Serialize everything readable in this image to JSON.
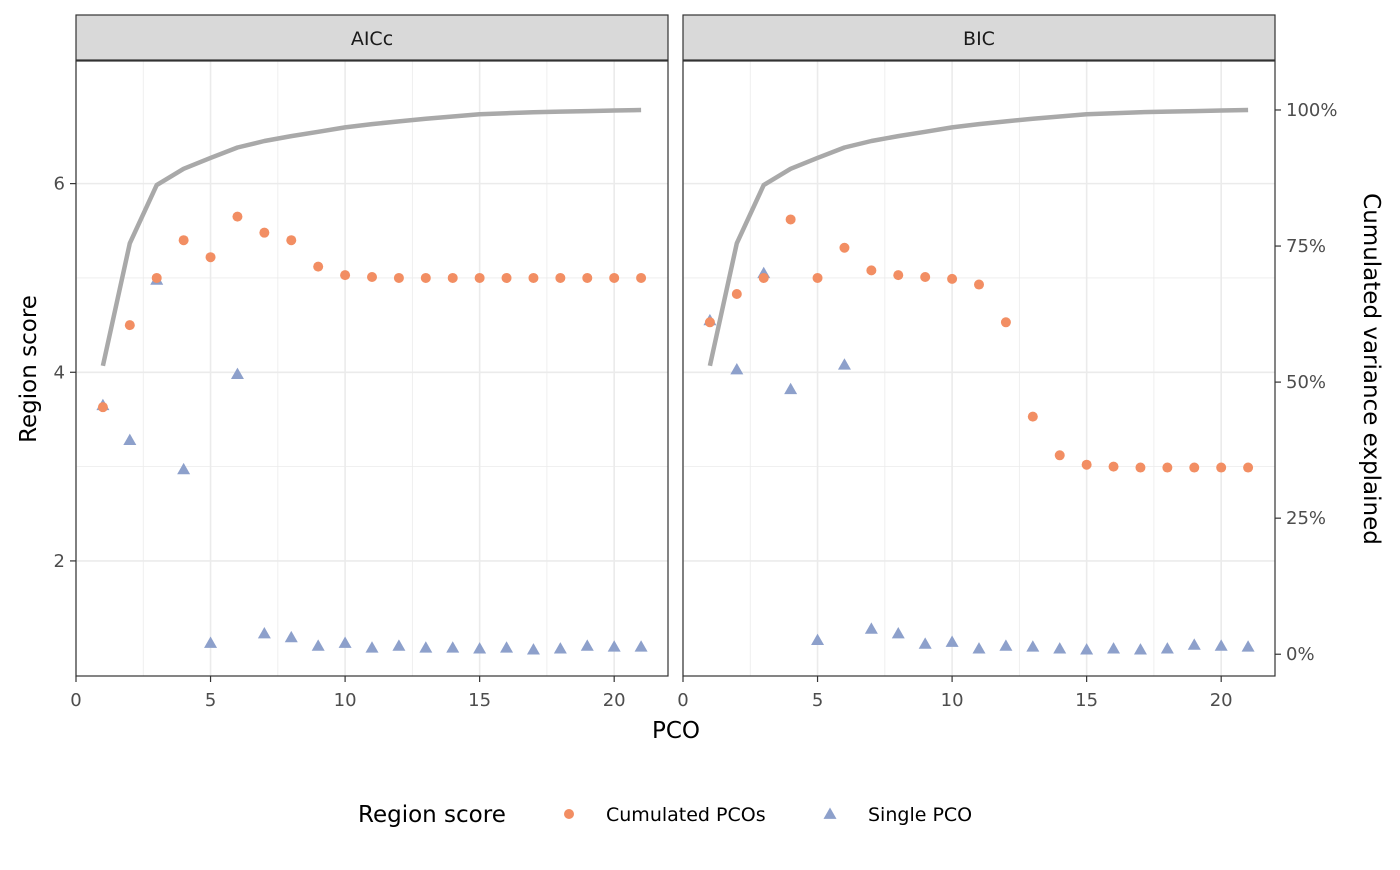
{
  "chart_data": {
    "type": "scatter",
    "facets": [
      {
        "label": "AICc",
        "cumulated_pcos": [
          [
            1,
            3.63
          ],
          [
            2,
            4.5
          ],
          [
            3,
            5.0
          ],
          [
            4,
            5.4
          ],
          [
            5,
            5.22
          ],
          [
            6,
            5.65
          ],
          [
            7,
            5.48
          ],
          [
            8,
            5.4
          ],
          [
            9,
            5.12
          ],
          [
            10,
            5.03
          ],
          [
            11,
            5.01
          ],
          [
            12,
            5.0
          ],
          [
            13,
            5.0
          ],
          [
            14,
            5.0
          ],
          [
            15,
            5.0
          ],
          [
            16,
            5.0
          ],
          [
            17,
            5.0
          ],
          [
            18,
            5.0
          ],
          [
            19,
            5.0
          ],
          [
            20,
            5.0
          ],
          [
            21,
            5.0
          ]
        ],
        "single_pco": [
          [
            1,
            3.65
          ],
          [
            2,
            3.28
          ],
          [
            3,
            4.98
          ],
          [
            4,
            2.97
          ],
          [
            5,
            1.13
          ],
          [
            6,
            3.98
          ],
          [
            7,
            1.23
          ],
          [
            8,
            1.19
          ],
          [
            9,
            1.1
          ],
          [
            10,
            1.13
          ],
          [
            11,
            1.08
          ],
          [
            12,
            1.1
          ],
          [
            13,
            1.08
          ],
          [
            14,
            1.08
          ],
          [
            15,
            1.07
          ],
          [
            16,
            1.08
          ],
          [
            17,
            1.06
          ],
          [
            18,
            1.07
          ],
          [
            19,
            1.1
          ],
          [
            20,
            1.09
          ],
          [
            21,
            1.09
          ]
        ],
        "cumulated_variance": [
          [
            1,
            53
          ],
          [
            2,
            75.5
          ],
          [
            3,
            86.2
          ],
          [
            4,
            89.2
          ],
          [
            5,
            91.2
          ],
          [
            6,
            93.1
          ],
          [
            7,
            94.3
          ],
          [
            8,
            95.2
          ],
          [
            9,
            96.0
          ],
          [
            10,
            96.8
          ],
          [
            11,
            97.4
          ],
          [
            12,
            97.9
          ],
          [
            13,
            98.4
          ],
          [
            14,
            98.8
          ],
          [
            15,
            99.2
          ],
          [
            16,
            99.4
          ],
          [
            17,
            99.6
          ],
          [
            18,
            99.7
          ],
          [
            19,
            99.8
          ],
          [
            20,
            99.9
          ],
          [
            21,
            100
          ]
        ]
      },
      {
        "label": "BIC",
        "cumulated_pcos": [
          [
            1,
            4.53
          ],
          [
            2,
            4.83
          ],
          [
            3,
            5.0
          ],
          [
            4,
            5.62
          ],
          [
            5,
            5.0
          ],
          [
            6,
            5.32
          ],
          [
            7,
            5.08
          ],
          [
            8,
            5.03
          ],
          [
            9,
            5.01
          ],
          [
            10,
            4.99
          ],
          [
            11,
            4.93
          ],
          [
            12,
            4.53
          ],
          [
            13,
            3.53
          ],
          [
            14,
            3.12
          ],
          [
            15,
            3.02
          ],
          [
            16,
            3.0
          ],
          [
            17,
            2.99
          ],
          [
            18,
            2.99
          ],
          [
            19,
            2.99
          ],
          [
            20,
            2.99
          ],
          [
            21,
            2.99
          ]
        ],
        "single_pco": [
          [
            1,
            4.55
          ],
          [
            2,
            4.03
          ],
          [
            3,
            5.05
          ],
          [
            4,
            3.82
          ],
          [
            5,
            1.16
          ],
          [
            6,
            4.08
          ],
          [
            7,
            1.28
          ],
          [
            8,
            1.23
          ],
          [
            9,
            1.12
          ],
          [
            10,
            1.14
          ],
          [
            11,
            1.07
          ],
          [
            12,
            1.1
          ],
          [
            13,
            1.09
          ],
          [
            14,
            1.07
          ],
          [
            15,
            1.06
          ],
          [
            16,
            1.07
          ],
          [
            17,
            1.06
          ],
          [
            18,
            1.07
          ],
          [
            19,
            1.11
          ],
          [
            20,
            1.1
          ],
          [
            21,
            1.09
          ]
        ],
        "cumulated_variance": [
          [
            1,
            53
          ],
          [
            2,
            75.5
          ],
          [
            3,
            86.2
          ],
          [
            4,
            89.2
          ],
          [
            5,
            91.2
          ],
          [
            6,
            93.1
          ],
          [
            7,
            94.3
          ],
          [
            8,
            95.2
          ],
          [
            9,
            96.0
          ],
          [
            10,
            96.8
          ],
          [
            11,
            97.4
          ],
          [
            12,
            97.9
          ],
          [
            13,
            98.4
          ],
          [
            14,
            98.8
          ],
          [
            15,
            99.2
          ],
          [
            16,
            99.4
          ],
          [
            17,
            99.6
          ],
          [
            18,
            99.7
          ],
          [
            19,
            99.8
          ],
          [
            20,
            99.9
          ],
          [
            21,
            100
          ]
        ]
      }
    ],
    "xlabel": "PCO",
    "ylabel": "Region score",
    "y2label": "Cumulated variance explained",
    "xlim": [
      0,
      22
    ],
    "ylim": [
      0.78,
      7.3
    ],
    "y2lim": [
      -4,
      109
    ],
    "x_ticks": [
      0,
      5,
      10,
      15,
      20
    ],
    "y_ticks": [
      2,
      4,
      6
    ],
    "y2_ticks": [
      {
        "value": 0,
        "label": "0%"
      },
      {
        "value": 25,
        "label": "25%"
      },
      {
        "value": 50,
        "label": "50%"
      },
      {
        "value": 75,
        "label": "75%"
      },
      {
        "value": 100,
        "label": "100%"
      }
    ],
    "grid": true,
    "legend": {
      "position": "bottom",
      "title": "Region score",
      "items": [
        {
          "key": "cumulated_pcos",
          "label": "Cumulated PCOs",
          "shape": "circle"
        },
        {
          "key": "single_pco",
          "label": "Single PCO",
          "shape": "triangle"
        }
      ]
    },
    "colors": {
      "cumulated_pcos": "#f28e63",
      "single_pco": "#8da0cb",
      "cumulated_variance": "#a9a9a9",
      "grid": "#ebebeb",
      "strip_fill": "#d9d9d9",
      "panel_border": "#333333"
    }
  }
}
